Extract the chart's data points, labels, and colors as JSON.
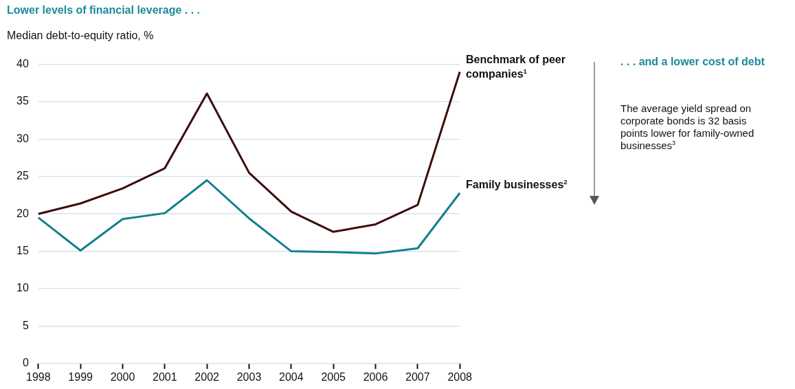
{
  "chart_data": {
    "type": "line",
    "title": "Lower levels of financial leverage . . .",
    "ylabel": "Median debt-to-equity ratio, %",
    "categories": [
      "1998",
      "1999",
      "2000",
      "2001",
      "2002",
      "2003",
      "2004",
      "2005",
      "2006",
      "2007",
      "2008"
    ],
    "series": [
      {
        "name": "Benchmark of peer companies$^{1}$",
        "color": "#3d0b0b",
        "values": [
          20.0,
          21.4,
          23.4,
          26.1,
          36.1,
          25.5,
          20.3,
          17.6,
          18.6,
          21.2,
          39.0
        ]
      },
      {
        "name": "Family businesses$^{2}$",
        "color": "#137f8d",
        "values": [
          19.5,
          15.1,
          19.3,
          20.1,
          24.5,
          19.4,
          15.0,
          14.9,
          14.7,
          15.4,
          22.8
        ]
      }
    ],
    "ylim": [
      0,
      40
    ],
    "yticks": [
      0,
      5,
      10,
      15,
      20,
      25,
      30,
      35,
      40
    ],
    "grid": "y",
    "legend": false,
    "marker": "none",
    "line_style": "solid",
    "annotations": [
      ". . . and a lower cost of debt",
      "The average yield spread on corporate bonds is 32 basis points lower for family-owned businesses$^{3}$"
    ]
  }
}
